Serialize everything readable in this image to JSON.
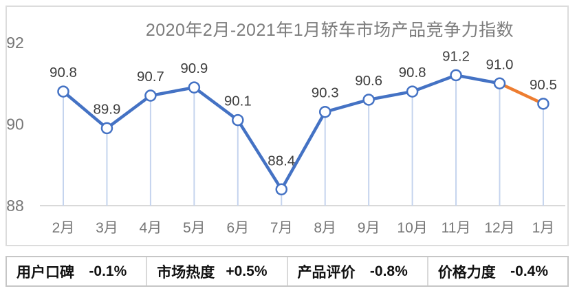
{
  "chart_data": {
    "type": "line",
    "title": "2020年2月-2021年1月轿车市场产品竞争力指数",
    "categories": [
      "2月",
      "3月",
      "4月",
      "5月",
      "6月",
      "7月",
      "8月",
      "9月",
      "10月",
      "11月",
      "12月",
      "1月"
    ],
    "values": [
      90.8,
      89.9,
      90.7,
      90.9,
      90.1,
      88.4,
      90.3,
      90.6,
      90.8,
      91.2,
      91.0,
      90.5
    ],
    "xlabel": "",
    "ylabel": "",
    "ylim": [
      88,
      92
    ],
    "yticks": [
      88,
      90,
      92
    ],
    "grid": false,
    "legend_position": "none",
    "data_labels_shown": true,
    "marker_style": "open-circle",
    "line_color": "#4472C4",
    "last_segment_color": "#ED7D31",
    "marker_fill": "#ffffff",
    "dropline_color": "#c5d4ee",
    "axis_line_color": "#d9d9d9",
    "axis_text_color": "#767676",
    "data_label_color": "#3d3d3d",
    "title_color": "#7c7c7c"
  },
  "stats": {
    "items": [
      {
        "label": "用户口碑",
        "value": "-0.1%"
      },
      {
        "label": "市场热度",
        "value": "+0.5%"
      },
      {
        "label": "产品评价",
        "value": "-0.8%"
      },
      {
        "label": "价格力度",
        "value": "-0.4%"
      }
    ]
  }
}
